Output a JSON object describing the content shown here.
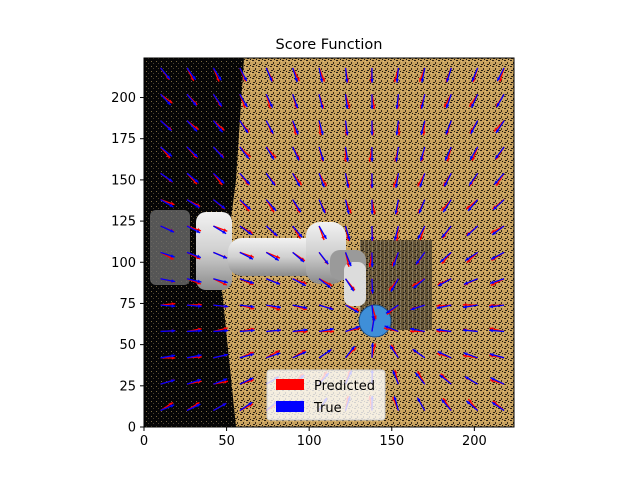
{
  "chart_data": {
    "type": "quiver",
    "title": "Score Function",
    "xlabel": "",
    "ylabel": "",
    "xlim": [
      0,
      224
    ],
    "ylim": [
      0,
      224
    ],
    "xticks": [
      0,
      50,
      100,
      150,
      200
    ],
    "yticks": [
      0,
      25,
      50,
      75,
      100,
      125,
      150,
      175,
      200
    ],
    "grid": false,
    "legend_position": "lower-center",
    "background": "image of a robot arm over a tan textured surface with a blue ball target",
    "target_point": [
      139,
      64
    ],
    "grid_step": 16,
    "grid_start": [
      10,
      10
    ],
    "series": [
      {
        "name": "Predicted",
        "color": "#ff0000"
      },
      {
        "name": "True",
        "color": "#0000ff"
      }
    ],
    "colors": {
      "predicted": "#ff0000",
      "true": "#0000ff",
      "surface": "#c9a35f",
      "dark": "#050505",
      "ball": "#3f8fd8"
    }
  }
}
